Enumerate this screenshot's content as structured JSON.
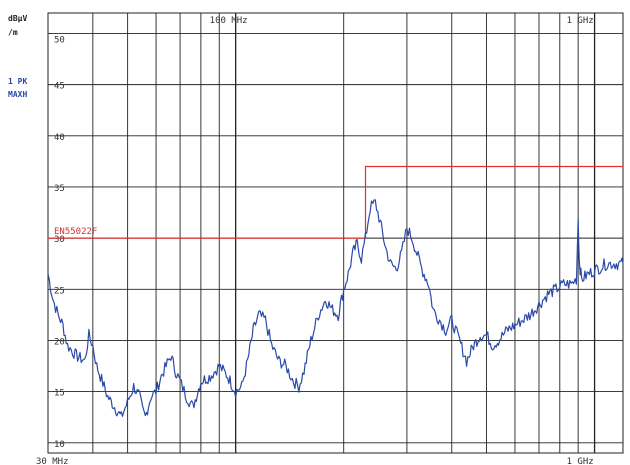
{
  "chart_data": {
    "type": "line",
    "ylabel_line1": "dBµV",
    "ylabel_line2": "/m",
    "detector_line1": "1 PK",
    "detector_line2": "MAXH",
    "x_scale": "log",
    "xlim_mhz": [
      30,
      1200
    ],
    "ylim": [
      9,
      52
    ],
    "grid": true,
    "y_ticks": [
      10,
      15,
      20,
      25,
      30,
      35,
      40,
      45,
      50
    ],
    "y_tick_labels": [
      "10",
      "15",
      "20",
      "25",
      "30",
      "35",
      "40",
      "45",
      "50"
    ],
    "top_labels": [
      {
        "text": "100 MHz",
        "x_mhz": 100
      },
      {
        "text": "1 GHz",
        "x_mhz": 1000
      }
    ],
    "bottom_labels": [
      {
        "text": "30 MHz",
        "x_mhz": 30
      },
      {
        "text": "1 GHz",
        "x_mhz": 1000
      }
    ],
    "limit_line": {
      "name": "EN55022F",
      "points": [
        [
          30,
          30
        ],
        [
          230,
          30
        ],
        [
          230,
          37
        ],
        [
          1200,
          37
        ]
      ]
    },
    "series": [
      {
        "x": [
          30,
          31,
          32,
          33,
          34,
          36,
          38,
          39,
          40,
          41,
          43,
          44,
          46,
          48,
          50,
          52,
          54,
          55,
          56,
          58,
          60,
          62,
          64,
          66,
          68,
          70,
          73,
          76,
          80,
          85,
          90,
          95,
          100,
          104,
          108,
          112,
          116,
          121,
          126,
          132,
          138,
          145,
          150,
          155,
          162,
          170,
          178,
          186,
          193,
          200,
          206,
          212,
          218,
          224,
          230,
          237,
          245,
          253,
          262,
          270,
          280,
          290,
          300,
          310,
          320,
          330,
          345,
          355,
          370,
          385,
          400,
          420,
          440,
          460,
          480,
          500,
          520,
          540,
          570,
          600,
          630,
          660,
          700,
          740,
          780,
          820,
          860,
          890,
          900,
          906,
          912,
          920,
          960,
          1020,
          1080,
          1150,
          1200
        ],
        "y": [
          26.5,
          24,
          22.5,
          21.5,
          19.5,
          18.5,
          18,
          20.5,
          19.5,
          17.5,
          15.5,
          14.5,
          13.5,
          12.5,
          14,
          15.5,
          14.5,
          13.2,
          12.5,
          14.5,
          15,
          16.5,
          17.5,
          18.5,
          17,
          16,
          14.5,
          13.5,
          16,
          16.5,
          17.5,
          16.5,
          15,
          15.5,
          18,
          21,
          22.5,
          22,
          19.5,
          18,
          17.5,
          16,
          15.5,
          17,
          20,
          22.5,
          24,
          23,
          22.5,
          25,
          26.5,
          28.5,
          29.5,
          28,
          30,
          33,
          33.5,
          31.5,
          29,
          27.5,
          27,
          28.5,
          31,
          30,
          28.5,
          27,
          25.5,
          23,
          22,
          21,
          22,
          20,
          18,
          19.5,
          20.5,
          20.5,
          19.5,
          20,
          21,
          21.5,
          22,
          22.5,
          23.5,
          24.5,
          25,
          25.5,
          25.5,
          26,
          32,
          28,
          27,
          26,
          26.5,
          27,
          27.5,
          27.5,
          27.5
        ]
      }
    ]
  }
}
